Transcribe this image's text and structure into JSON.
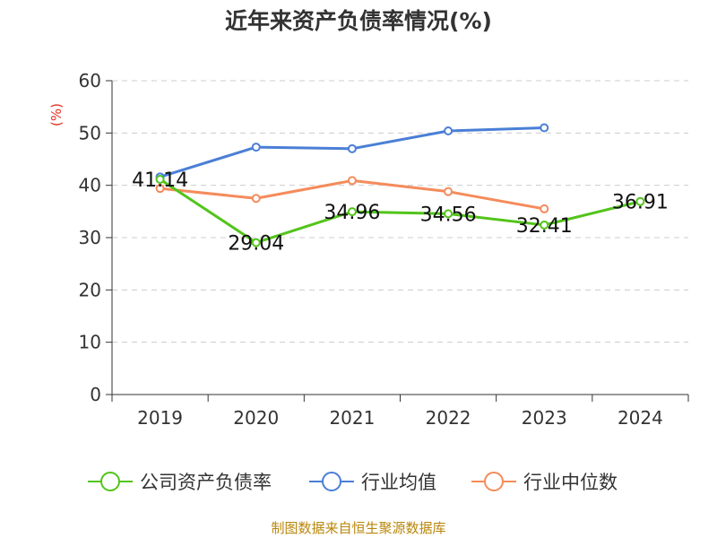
{
  "chart_data": {
    "type": "line",
    "title": "近年来资产负债率情况(%)",
    "ylabel": "(%)",
    "xlabel": "",
    "categories": [
      "2019",
      "2020",
      "2021",
      "2022",
      "2023",
      "2024"
    ],
    "ylim": [
      0,
      60
    ],
    "yticks": [
      0,
      10,
      20,
      30,
      40,
      50,
      60
    ],
    "grid": true,
    "legend_position": "bottom",
    "series": [
      {
        "name": "公司资产负债率",
        "color": "#52c41a",
        "values": [
          41.14,
          29.04,
          34.96,
          34.56,
          32.41,
          36.91
        ],
        "labels": [
          "41.14",
          "29.04",
          "34.96",
          "34.56",
          "32.41",
          "36.91"
        ]
      },
      {
        "name": "行业均值",
        "color": "#4a7fd6",
        "values": [
          41.6,
          47.3,
          47.0,
          50.4,
          51.0,
          null
        ]
      },
      {
        "name": "行业中位数",
        "color": "#f58b5b",
        "values": [
          39.4,
          37.5,
          40.9,
          38.8,
          35.5,
          null
        ]
      }
    ]
  },
  "footer": "制图数据来自恒生聚源数据库"
}
